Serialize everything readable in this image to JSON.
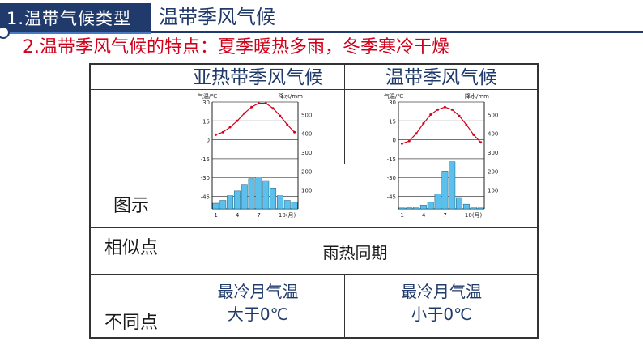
{
  "header": {
    "tag": "1.温带气候类型",
    "subtitle": "温带季风气候",
    "point": "2.温带季风气候的特点：夏季暖热多雨，冬季寒冷干燥"
  },
  "table": {
    "col_heads": [
      "亚热带季风气候",
      "温带季风气候"
    ],
    "row_labels": {
      "chart": "图示",
      "similar": "相似点",
      "diff": "不同点"
    },
    "similar_text": "雨热同期",
    "diff_left": [
      "最冷月气温",
      "大于0℃"
    ],
    "diff_right": [
      "最冷月气温",
      "小于0℃"
    ]
  },
  "chart_data": [
    {
      "type": "bar",
      "title": "",
      "ylabel": "气温/℃",
      "y2label": "降水/mm",
      "temp_ticks": [
        30,
        15,
        0,
        -15,
        -30,
        -45
      ],
      "precip_ticks": [
        500,
        400,
        300,
        200,
        100
      ],
      "x_ticks": [
        "1",
        "4",
        "7",
        "10(月)"
      ],
      "temp_ylim": [
        -55,
        30
      ],
      "precip_ylim": [
        0,
        566
      ],
      "months": [
        1,
        2,
        3,
        4,
        5,
        6,
        7,
        8,
        9,
        10,
        11,
        12
      ],
      "series": [
        {
          "kind": "line",
          "values": [
            4,
            6,
            10,
            15,
            21,
            26,
            29,
            29,
            25,
            19,
            12,
            6
          ]
        },
        {
          "kind": "bar",
          "values": [
            30,
            45,
            70,
            95,
            130,
            160,
            170,
            150,
            110,
            70,
            45,
            35
          ]
        }
      ]
    },
    {
      "type": "bar",
      "title": "",
      "ylabel": "气温/℃",
      "y2label": "降水/mm",
      "temp_ticks": [
        30,
        15,
        0,
        -15,
        -30,
        -45
      ],
      "precip_ticks": [
        500,
        400,
        300,
        200,
        100
      ],
      "x_ticks": [
        "1",
        "4",
        "7",
        "10(月)"
      ],
      "temp_ylim": [
        -55,
        30
      ],
      "precip_ylim": [
        0,
        566
      ],
      "months": [
        1,
        2,
        3,
        4,
        5,
        6,
        7,
        8,
        9,
        10,
        11,
        12
      ],
      "series": [
        {
          "kind": "line",
          "values": [
            -3,
            -1,
            5,
            13,
            20,
            24,
            26,
            24,
            19,
            12,
            4,
            -2
          ]
        },
        {
          "kind": "bar",
          "values": [
            5,
            6,
            10,
            20,
            35,
            80,
            200,
            250,
            60,
            25,
            10,
            5
          ]
        }
      ]
    }
  ],
  "colors": {
    "header_bg": "#1f3a6b",
    "point_text": "#d0021b",
    "bar_fill": "#5bc0eb",
    "line_color": "#d0021b"
  }
}
